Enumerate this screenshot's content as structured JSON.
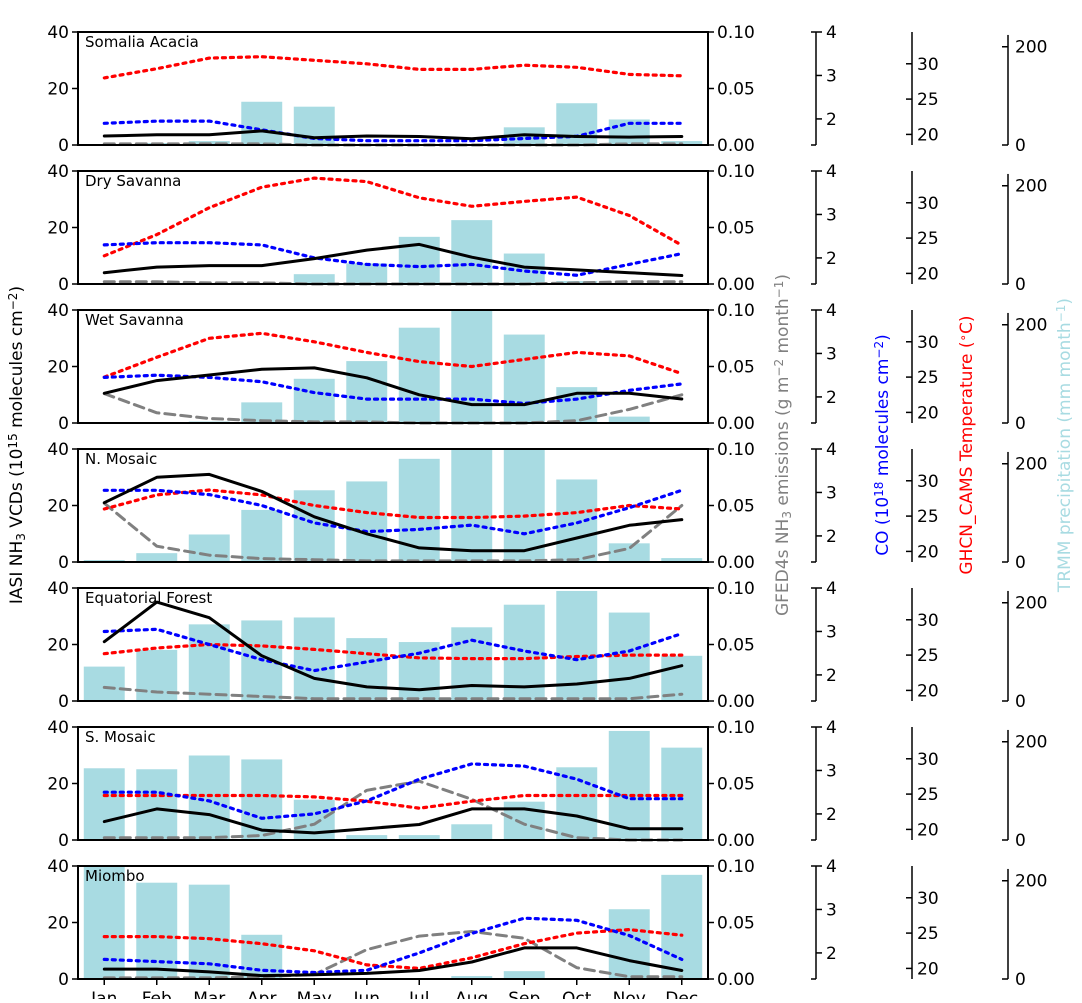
{
  "chart_data": {
    "type": "bar",
    "categories": [
      "Jan",
      "Feb",
      "Mar",
      "Apr",
      "May",
      "Jun",
      "Jul",
      "Aug",
      "Sep",
      "Oct",
      "Nov",
      "Dec"
    ],
    "axes": {
      "nh3_vcd": {
        "label": "IASI NH$_3$ VCDs",
        "label_main": "IASI NH",
        "label_sub": "3",
        "label_mid": " VCDs (10",
        "label_sup": "15",
        "label_tail": " molecules cm",
        "label_sup2": "−2",
        "label_end": ")",
        "ylim": [
          0,
          40
        ],
        "ticks": [
          "0",
          "20",
          "40"
        ],
        "color": "#000000"
      },
      "gfed_emissions": {
        "label_main": "GFED4s NH",
        "label_sub": "3",
        "label_mid": " emissions (g m",
        "label_sup": "−2",
        "label_tail": " month",
        "label_sup2": "−1",
        "label_end": ")",
        "ylim": [
          0,
          0.1
        ],
        "ticks": [
          "0.00",
          "0.05",
          "0.10"
        ],
        "color": "#808080"
      },
      "co": {
        "label_main": "CO (10",
        "label_sup": "18",
        "label_tail": " molecules cm",
        "label_sup2": "−2",
        "label_end": ")",
        "ylim": [
          1.4,
          4
        ],
        "ticks": [
          "2",
          "3",
          "4"
        ],
        "color": "#0000ff"
      },
      "temperature": {
        "label_main": "GHCN_CAMS Temperature (",
        "label_sup": "∘",
        "label_end": "C)",
        "ylim": [
          18.5,
          34.5
        ],
        "ticks": [
          "20",
          "25",
          "30"
        ],
        "color": "#ff0000"
      },
      "precipitation": {
        "label_main": "TRMM precipitation (mm month",
        "label_sup": "−1",
        "label_end": ")",
        "ylim": [
          0,
          230
        ],
        "ticks": [
          "0",
          "200"
        ],
        "color": "#add8e6"
      }
    },
    "series_styles": {
      "precipitation": {
        "color": "#a8dbe2",
        "type": "bar"
      },
      "nh3_vcd": {
        "color": "#000000",
        "type": "line",
        "dash": "solid"
      },
      "gfed_emissions": {
        "color": "#808080",
        "type": "line",
        "dash": "dashed"
      },
      "co": {
        "color": "#0000ff",
        "type": "line",
        "dash": "dotted"
      },
      "temperature": {
        "color": "#ff0000",
        "type": "line",
        "dash": "dotted"
      }
    },
    "panels": [
      {
        "title": "Somalia Acacia",
        "precipitation": [
          2,
          4,
          8,
          88,
          78,
          0,
          0,
          0,
          36,
          85,
          52,
          8
        ],
        "nh3_vcd": [
          3.2,
          3.6,
          3.6,
          5.0,
          2.6,
          3.2,
          3.0,
          2.2,
          3.6,
          3.0,
          2.8,
          3.0
        ],
        "gfed_emissions": [
          0.001,
          0.001,
          0.001,
          0.001,
          0.0,
          0.0,
          0.0,
          0.0,
          0.0,
          0.0,
          0.001,
          0.001
        ],
        "co": [
          1.9,
          1.95,
          1.95,
          1.75,
          1.55,
          1.5,
          1.5,
          1.5,
          1.55,
          1.6,
          1.9,
          1.9
        ],
        "temperature": [
          28.0,
          29.3,
          30.8,
          31.0,
          30.5,
          30.0,
          29.2,
          29.2,
          29.8,
          29.5,
          28.5,
          28.3
        ]
      },
      {
        "title": "Dry Savanna",
        "precipitation": [
          0,
          0,
          2,
          2,
          20,
          42,
          96,
          130,
          62,
          6,
          0,
          0
        ],
        "nh3_vcd": [
          4,
          6,
          6.5,
          6.5,
          9,
          12,
          14,
          9.5,
          6,
          5,
          4,
          3
        ],
        "gfed_emissions": [
          0.002,
          0.002,
          0.001,
          0.001,
          0.0,
          0.0,
          0.0,
          0.0,
          0.0,
          0.001,
          0.002,
          0.002
        ],
        "co": [
          2.3,
          2.35,
          2.35,
          2.3,
          2.0,
          1.85,
          1.8,
          1.85,
          1.7,
          1.6,
          1.85,
          2.1
        ],
        "temperature": [
          22.5,
          25.5,
          29.3,
          32.2,
          33.5,
          33.0,
          30.7,
          29.5,
          30.2,
          30.8,
          28.2,
          24.0
        ]
      },
      {
        "title": "Wet Savanna",
        "precipitation": [
          0,
          0,
          3,
          42,
          90,
          126,
          194,
          232,
          180,
          73,
          13,
          0
        ],
        "nh3_vcd": [
          10.5,
          15,
          17,
          19,
          19.5,
          16,
          10,
          6.5,
          6.5,
          10.5,
          10.5,
          8.5
        ],
        "gfed_emissions": [
          0.026,
          0.009,
          0.004,
          0.002,
          0.001,
          0.001,
          0.0,
          0.0,
          0.0,
          0.002,
          0.012,
          0.025
        ],
        "co": [
          2.45,
          2.5,
          2.45,
          2.35,
          2.1,
          1.95,
          1.95,
          1.95,
          1.85,
          1.95,
          2.15,
          2.3
        ],
        "temperature": [
          25.0,
          27.8,
          30.5,
          31.2,
          30.0,
          28.5,
          27.2,
          26.5,
          27.5,
          28.5,
          28.0,
          25.5
        ]
      },
      {
        "title": "N. Mosaic",
        "precipitation": [
          4,
          18,
          56,
          106,
          146,
          164,
          210,
          265,
          255,
          168,
          38,
          8
        ],
        "nh3_vcd": [
          21,
          30,
          31,
          25,
          16,
          10,
          5,
          4,
          4,
          8.5,
          13,
          15
        ],
        "gfed_emissions": [
          0.052,
          0.014,
          0.006,
          0.003,
          0.002,
          0.001,
          0.001,
          0.001,
          0.001,
          0.002,
          0.012,
          0.05
        ],
        "co": [
          3.05,
          3.05,
          2.95,
          2.7,
          2.3,
          2.1,
          2.15,
          2.25,
          2.05,
          2.3,
          2.65,
          3.05
        ],
        "temperature": [
          26.0,
          28.0,
          28.7,
          28.0,
          26.5,
          25.5,
          24.8,
          24.8,
          25.0,
          25.5,
          26.5,
          26.0
        ]
      },
      {
        "title": "Equatorial Forest",
        "precipitation": [
          70,
          104,
          156,
          164,
          170,
          128,
          120,
          150,
          196,
          224,
          180,
          92
        ],
        "nh3_vcd": [
          21,
          35,
          29.5,
          16,
          8,
          5,
          4,
          5.5,
          5,
          6,
          8,
          12.5
        ],
        "gfed_emissions": [
          0.012,
          0.008,
          0.006,
          0.004,
          0.002,
          0.002,
          0.002,
          0.002,
          0.002,
          0.002,
          0.002,
          0.006
        ],
        "co": [
          3.0,
          3.05,
          2.7,
          2.35,
          2.1,
          2.3,
          2.5,
          2.8,
          2.55,
          2.35,
          2.55,
          2.95
        ],
        "temperature": [
          25.2,
          26.0,
          26.5,
          26.3,
          25.8,
          25.2,
          24.6,
          24.5,
          24.5,
          24.8,
          25.0,
          25.0
        ]
      },
      {
        "title": "S. Mosaic",
        "precipitation": [
          146,
          144,
          172,
          164,
          82,
          10,
          10,
          32,
          78,
          148,
          222,
          188
        ],
        "nh3_vcd": [
          6.5,
          11,
          9,
          3.5,
          2.5,
          4,
          5.5,
          11,
          11,
          8.5,
          4,
          4
        ],
        "gfed_emissions": [
          0.002,
          0.002,
          0.002,
          0.004,
          0.014,
          0.044,
          0.052,
          0.036,
          0.014,
          0.002,
          0.0,
          0.0
        ],
        "co": [
          2.5,
          2.5,
          2.3,
          1.9,
          2.0,
          2.3,
          2.8,
          3.15,
          3.1,
          2.8,
          2.35,
          2.35
        ],
        "temperature": [
          24.8,
          24.8,
          24.8,
          24.8,
          24.6,
          24.0,
          23.0,
          24.0,
          24.8,
          24.8,
          24.8,
          24.8
        ]
      },
      {
        "title": "Miombo",
        "precipitation": [
          240,
          196,
          192,
          90,
          0,
          0,
          0,
          6,
          16,
          2,
          142,
          212
        ],
        "nh3_vcd": [
          3.5,
          3.5,
          2.5,
          1.2,
          1.5,
          2,
          3,
          6,
          11,
          11,
          6.5,
          3
        ],
        "gfed_emissions": [
          0.001,
          0.001,
          0.001,
          0.002,
          0.004,
          0.026,
          0.038,
          0.042,
          0.036,
          0.01,
          0.002,
          0.002
        ],
        "co": [
          1.85,
          1.8,
          1.75,
          1.6,
          1.55,
          1.6,
          2.0,
          2.45,
          2.8,
          2.75,
          2.4,
          1.85
        ],
        "temperature": [
          24.5,
          24.5,
          24.2,
          23.5,
          22.5,
          20.5,
          20.0,
          21.5,
          23.5,
          25.0,
          25.5,
          24.7
        ]
      }
    ]
  }
}
